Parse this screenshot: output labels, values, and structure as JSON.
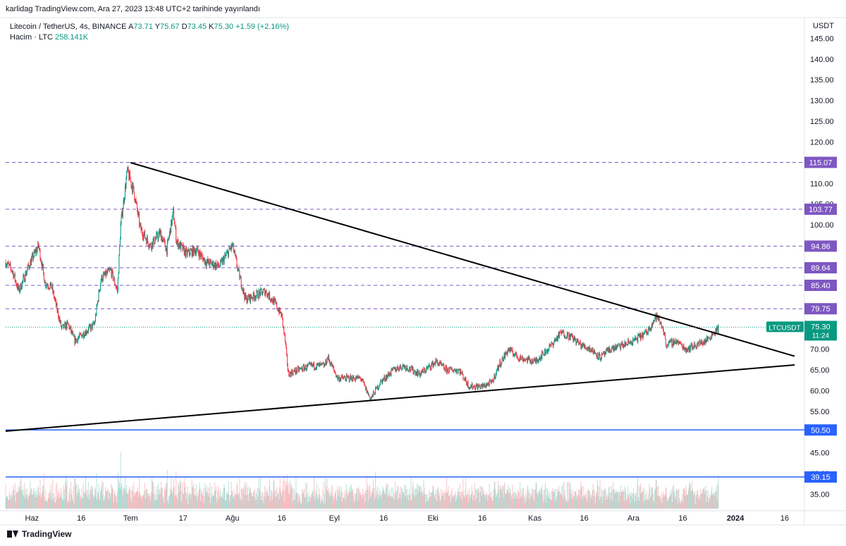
{
  "header": {
    "publish_text": "karlidag TradingView.com, Ara 27, 2023 13:48 UTC+2 tarihinde yayınlandı"
  },
  "legend": {
    "symbol": "Litecoin / TetherUS, 4s, BINANCE",
    "open_label": "A",
    "open": "73.71",
    "high_label": "Y",
    "high": "75.67",
    "low_label": "D",
    "low": "73.45",
    "close_label": "K",
    "close": "75.30",
    "change": "+1.59 (+2.16%)",
    "volume_label": "Hacim · LTC",
    "volume": "258.141K"
  },
  "footer": {
    "brand": "TradingView"
  },
  "colors": {
    "up": "#089981",
    "down": "#f23645",
    "purple_level": "#7e57c2",
    "blue_level": "#2962ff",
    "trendline": "#000000"
  },
  "chart_data": {
    "type": "candlestick",
    "symbol": "LTCUSDT",
    "currency": "USDT",
    "timeframe": "4s",
    "y_ticks": [
      35,
      40,
      45,
      50,
      55,
      60,
      65,
      70,
      75,
      80,
      85,
      90,
      95,
      100,
      105,
      110,
      115,
      120,
      125,
      130,
      135,
      140,
      145
    ],
    "y_tick_labels": [
      "35.00",
      "40.00",
      "45.00",
      "50.00",
      "55.00",
      "60.00",
      "65.00",
      "70.00",
      "75.00",
      "80.00",
      "85.00",
      "90.00",
      "95.00",
      "100.00",
      "105.00",
      "110.00",
      "115.00",
      "120.00",
      "125.00",
      "130.00",
      "135.00",
      "140.00",
      "145.00"
    ],
    "ylim": [
      31,
      150
    ],
    "x_labels": [
      {
        "label": "Haz",
        "date": "2023-06-01"
      },
      {
        "label": "16",
        "date": "2023-06-16"
      },
      {
        "label": "Tem",
        "date": "2023-07-01"
      },
      {
        "label": "17",
        "date": "2023-07-17"
      },
      {
        "label": "Ağu",
        "date": "2023-08-01"
      },
      {
        "label": "16",
        "date": "2023-08-16"
      },
      {
        "label": "Eyl",
        "date": "2023-09-01"
      },
      {
        "label": "16",
        "date": "2023-09-16"
      },
      {
        "label": "Eki",
        "date": "2023-10-01"
      },
      {
        "label": "16",
        "date": "2023-10-16"
      },
      {
        "label": "Kas",
        "date": "2023-11-01"
      },
      {
        "label": "16",
        "date": "2023-11-16"
      },
      {
        "label": "Ara",
        "date": "2023-12-01"
      },
      {
        "label": "16",
        "date": "2023-12-16"
      },
      {
        "label": "2024",
        "date": "2024-01-01"
      },
      {
        "label": "16",
        "date": "2024-01-16"
      }
    ],
    "xlim": [
      "2023-05-24",
      "2024-01-22"
    ],
    "price_path": [
      {
        "date": "2023-05-24",
        "price": 91
      },
      {
        "date": "2023-05-26",
        "price": 89
      },
      {
        "date": "2023-05-28",
        "price": 84
      },
      {
        "date": "2023-05-31",
        "price": 90
      },
      {
        "date": "2023-06-03",
        "price": 95
      },
      {
        "date": "2023-06-05",
        "price": 86
      },
      {
        "date": "2023-06-07",
        "price": 85
      },
      {
        "date": "2023-06-10",
        "price": 75
      },
      {
        "date": "2023-06-12",
        "price": 76
      },
      {
        "date": "2023-06-14",
        "price": 72
      },
      {
        "date": "2023-06-17",
        "price": 74
      },
      {
        "date": "2023-06-20",
        "price": 76
      },
      {
        "date": "2023-06-22",
        "price": 87
      },
      {
        "date": "2023-06-25",
        "price": 89
      },
      {
        "date": "2023-06-27",
        "price": 84
      },
      {
        "date": "2023-06-28",
        "price": 100
      },
      {
        "date": "2023-06-30",
        "price": 113
      },
      {
        "date": "2023-07-02",
        "price": 108
      },
      {
        "date": "2023-07-04",
        "price": 99
      },
      {
        "date": "2023-07-07",
        "price": 95
      },
      {
        "date": "2023-07-10",
        "price": 98
      },
      {
        "date": "2023-07-12",
        "price": 94
      },
      {
        "date": "2023-07-14",
        "price": 103
      },
      {
        "date": "2023-07-15",
        "price": 96
      },
      {
        "date": "2023-07-18",
        "price": 93
      },
      {
        "date": "2023-07-21",
        "price": 94
      },
      {
        "date": "2023-07-24",
        "price": 91
      },
      {
        "date": "2023-07-28",
        "price": 90
      },
      {
        "date": "2023-08-01",
        "price": 95
      },
      {
        "date": "2023-08-03",
        "price": 88
      },
      {
        "date": "2023-08-05",
        "price": 82
      },
      {
        "date": "2023-08-08",
        "price": 83
      },
      {
        "date": "2023-08-11",
        "price": 84
      },
      {
        "date": "2023-08-14",
        "price": 81
      },
      {
        "date": "2023-08-16",
        "price": 78
      },
      {
        "date": "2023-08-17",
        "price": 72
      },
      {
        "date": "2023-08-18",
        "price": 64
      },
      {
        "date": "2023-08-21",
        "price": 65
      },
      {
        "date": "2023-08-25",
        "price": 66
      },
      {
        "date": "2023-08-29",
        "price": 66
      },
      {
        "date": "2023-08-30",
        "price": 68
      },
      {
        "date": "2023-09-02",
        "price": 63
      },
      {
        "date": "2023-09-06",
        "price": 63
      },
      {
        "date": "2023-09-09",
        "price": 63
      },
      {
        "date": "2023-09-12",
        "price": 58
      },
      {
        "date": "2023-09-15",
        "price": 62
      },
      {
        "date": "2023-09-19",
        "price": 65
      },
      {
        "date": "2023-09-22",
        "price": 66
      },
      {
        "date": "2023-09-27",
        "price": 64
      },
      {
        "date": "2023-10-02",
        "price": 67
      },
      {
        "date": "2023-10-05",
        "price": 65
      },
      {
        "date": "2023-10-09",
        "price": 65
      },
      {
        "date": "2023-10-12",
        "price": 61
      },
      {
        "date": "2023-10-16",
        "price": 61
      },
      {
        "date": "2023-10-19",
        "price": 62
      },
      {
        "date": "2023-10-21",
        "price": 66
      },
      {
        "date": "2023-10-24",
        "price": 70
      },
      {
        "date": "2023-10-27",
        "price": 68
      },
      {
        "date": "2023-11-01",
        "price": 67
      },
      {
        "date": "2023-11-05",
        "price": 70
      },
      {
        "date": "2023-11-09",
        "price": 74
      },
      {
        "date": "2023-11-12",
        "price": 73
      },
      {
        "date": "2023-11-15",
        "price": 71
      },
      {
        "date": "2023-11-18",
        "price": 70
      },
      {
        "date": "2023-11-21",
        "price": 68
      },
      {
        "date": "2023-11-24",
        "price": 70
      },
      {
        "date": "2023-11-28",
        "price": 71
      },
      {
        "date": "2023-12-01",
        "price": 72
      },
      {
        "date": "2023-12-05",
        "price": 74
      },
      {
        "date": "2023-12-08",
        "price": 78
      },
      {
        "date": "2023-12-10",
        "price": 75
      },
      {
        "date": "2023-12-11",
        "price": 71
      },
      {
        "date": "2023-12-14",
        "price": 72
      },
      {
        "date": "2023-12-17",
        "price": 70
      },
      {
        "date": "2023-12-20",
        "price": 71
      },
      {
        "date": "2023-12-23",
        "price": 72
      },
      {
        "date": "2023-12-27",
        "price": 75.3
      }
    ],
    "volume_ylim": [
      0,
      1
    ],
    "horizontal_levels": [
      {
        "value": 115.07,
        "label": "115.07",
        "style": "dashed",
        "color": "#7e57c2"
      },
      {
        "value": 103.77,
        "label": "103.77",
        "style": "dashed",
        "color": "#7e57c2"
      },
      {
        "value": 94.86,
        "label": "94.86",
        "style": "dashed",
        "color": "#7e57c2"
      },
      {
        "value": 89.64,
        "label": "89.64",
        "style": "dashed",
        "color": "#7e57c2"
      },
      {
        "value": 85.4,
        "label": "85.40",
        "style": "dashed",
        "color": "#7e57c2"
      },
      {
        "value": 79.75,
        "label": "79.75",
        "style": "dashed",
        "color": "#7e57c2"
      },
      {
        "value": 50.5,
        "label": "50.50",
        "style": "solid",
        "color": "#2962ff"
      },
      {
        "value": 39.15,
        "label": "39.15",
        "style": "solid",
        "color": "#2962ff"
      }
    ],
    "trendlines": [
      {
        "name": "descending",
        "from": {
          "date": "2023-07-01",
          "price": 115.0
        },
        "to": {
          "date": "2024-01-19",
          "price": 68.3
        }
      },
      {
        "name": "ascending",
        "from": {
          "date": "2023-05-24",
          "price": 50.2
        },
        "to": {
          "date": "2024-01-19",
          "price": 66.2
        }
      }
    ],
    "current_price": {
      "value": 75.3,
      "label": "75.30",
      "symbol_tag": "LTCUSDT",
      "countdown": "11:24"
    }
  }
}
